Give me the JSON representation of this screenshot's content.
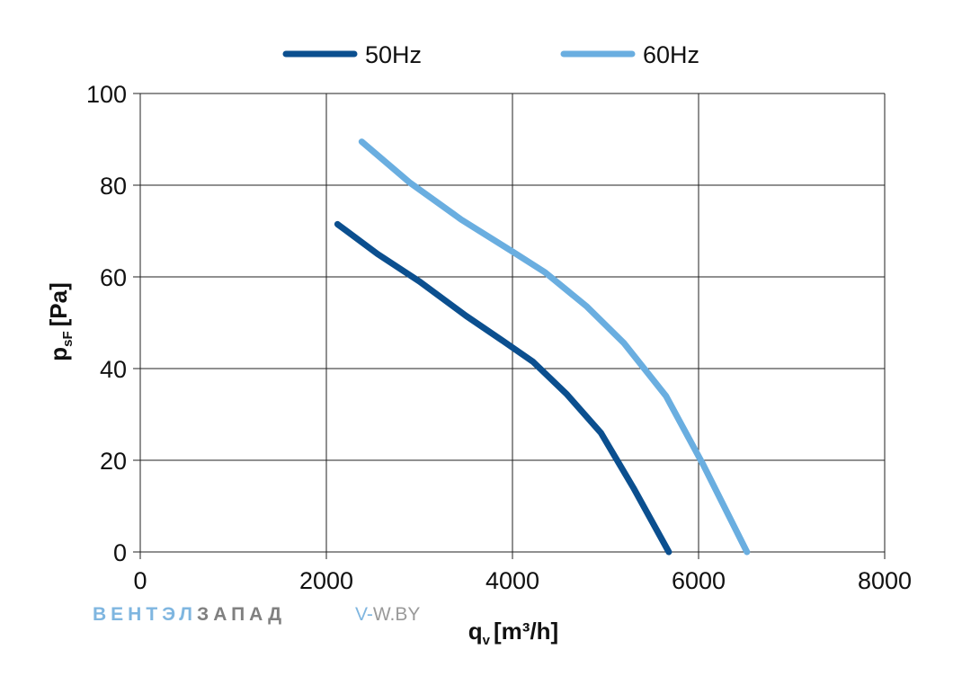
{
  "chart_data": {
    "type": "line",
    "title": "",
    "xlabel": {
      "main": "q",
      "sub": "v",
      "rest": "[m³/h]"
    },
    "ylabel": {
      "main": "p",
      "sub": "sF",
      "rest": "[Pa]"
    },
    "xlim": [
      0,
      8000
    ],
    "ylim": [
      0,
      100
    ],
    "xticks": [
      0,
      2000,
      4000,
      6000,
      8000
    ],
    "yticks": [
      0,
      20,
      40,
      60,
      80,
      100
    ],
    "grid": true,
    "legend_position": "top",
    "series": [
      {
        "name": "50Hz",
        "color": "#0b4f8f",
        "x": [
          2120,
          2550,
          3000,
          3500,
          3900,
          4220,
          4580,
          4950,
          5300,
          5680
        ],
        "y": [
          71.5,
          65,
          59,
          51.5,
          46,
          41.5,
          34.5,
          26,
          14,
          0
        ]
      },
      {
        "name": "60Hz",
        "color": "#6aaee0",
        "x": [
          2380,
          2900,
          3450,
          4000,
          4350,
          4800,
          5200,
          5650,
          6050,
          6520
        ],
        "y": [
          89.5,
          80.5,
          72.5,
          65.5,
          61,
          53.5,
          45.5,
          34,
          19,
          0
        ]
      }
    ]
  },
  "watermark": {
    "brand_part1": "ВЕНТЭЛ",
    "brand_part2": "ЗАПАД",
    "site_part1": "V-",
    "site_part2": "W.BY",
    "color_part1": "#7fb6e0",
    "color_part2": "#808080"
  },
  "colors": {
    "grid": "#222222",
    "background": "#ffffff"
  }
}
